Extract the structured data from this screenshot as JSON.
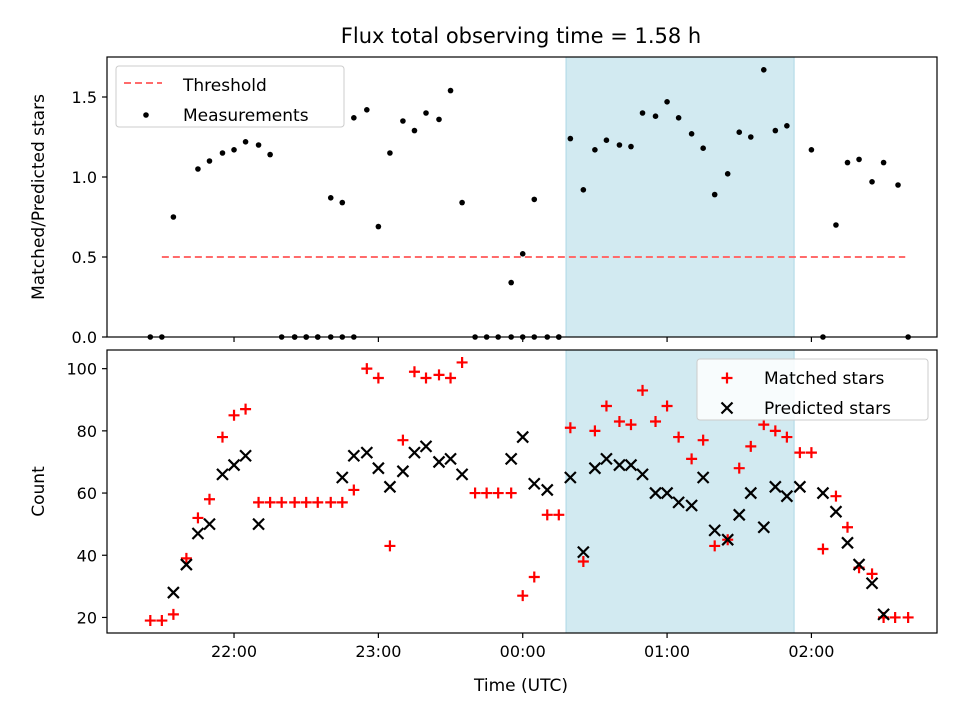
{
  "chart_data": {
    "title": "Flux total observing time = 1.58 h",
    "xlabel": "Time (UTC)",
    "x_tick_labels": [
      "22:00",
      "23:00",
      "00:00",
      "01:00",
      "02:00"
    ],
    "x_tick_hours": [
      22,
      23,
      24,
      25,
      26
    ],
    "xlim_hours": [
      21.12,
      26.87
    ],
    "shaded_span_hours": [
      24.3,
      25.88
    ],
    "colors": {
      "shade": "#add8e6",
      "threshold": "#ff6b6b",
      "measurements": "#000000",
      "matched": "#ff0000",
      "predicted": "#000000"
    },
    "panels": [
      {
        "type": "scatter",
        "ylabel": "Matched/Predicted stars",
        "ylim": [
          0,
          1.75
        ],
        "y_ticks": [
          0.0,
          0.5,
          1.0,
          1.5
        ],
        "y_tick_labels": [
          "0.0",
          "0.5",
          "1.0",
          "1.5"
        ],
        "legend_position": "top-left",
        "legend": [
          {
            "label": "Threshold",
            "marker": "dashed-line",
            "color": "#ff6b6b"
          },
          {
            "label": "Measurements",
            "marker": "dot",
            "color": "#000000"
          }
        ],
        "threshold": {
          "y": 0.5,
          "x_range_hours": [
            21.5,
            26.65
          ]
        },
        "series": [
          {
            "name": "Measurements",
            "marker": "dot",
            "x_hours": [
              21.5,
              21.58,
              21.75,
              21.83,
              21.92,
              22.0,
              22.08,
              22.17,
              22.25,
              22.33,
              22.42,
              22.5,
              22.58,
              22.67,
              22.75,
              22.83,
              22.92,
              23.0,
              23.08,
              23.17,
              23.25,
              23.33,
              23.42,
              23.5,
              23.58,
              23.67,
              23.75,
              23.83,
              23.92,
              24.0,
              24.08,
              24.17,
              24.25,
              24.33,
              24.42,
              24.5,
              24.58,
              24.67,
              24.75,
              24.83,
              24.92,
              25.0,
              25.08,
              25.17,
              25.25,
              25.33,
              25.42,
              25.5,
              25.58,
              25.67,
              25.75,
              25.83,
              26.0,
              26.08,
              26.17,
              26.25,
              26.33,
              26.42,
              26.5,
              26.6,
              26.67,
              21.42,
              22.42,
              22.5,
              22.58,
              22.67,
              22.75,
              22.83,
              23.92,
              24.0,
              24.08,
              24.25
            ],
            "y": [
              0.0,
              0.75,
              1.05,
              1.1,
              1.15,
              1.17,
              1.22,
              1.2,
              1.14,
              0.0,
              0.0,
              0.0,
              0.0,
              0.87,
              0.84,
              1.37,
              1.42,
              0.69,
              1.15,
              1.35,
              1.29,
              1.4,
              1.36,
              1.54,
              0.84,
              0.0,
              0.0,
              0.0,
              0.34,
              0.52,
              0.86,
              0.0,
              0.0,
              1.24,
              0.92,
              1.17,
              1.23,
              1.2,
              1.19,
              1.4,
              1.38,
              1.47,
              1.37,
              1.27,
              1.18,
              0.89,
              1.02,
              1.28,
              1.25,
              1.67,
              1.29,
              1.32,
              1.17,
              0.0,
              0.7,
              1.09,
              1.11,
              0.97,
              1.09,
              0.95,
              0.0,
              0.0,
              0.0,
              0.0,
              0.0,
              0.0,
              0.0,
              0.0,
              0.0,
              0.0,
              0.0,
              0.0
            ]
          }
        ]
      },
      {
        "type": "scatter",
        "ylabel": "Count",
        "ylim": [
          15,
          106
        ],
        "y_ticks": [
          20,
          40,
          60,
          80,
          100
        ],
        "y_tick_labels": [
          "20",
          "40",
          "60",
          "80",
          "100"
        ],
        "legend_position": "top-right",
        "legend": [
          {
            "label": "Matched stars",
            "marker": "plus",
            "color": "#ff0000"
          },
          {
            "label": "Predicted stars",
            "marker": "x",
            "color": "#000000"
          }
        ],
        "series": [
          {
            "name": "Matched stars",
            "marker": "plus",
            "x_hours": [
              21.42,
              21.5,
              21.58,
              21.67,
              21.75,
              21.83,
              21.92,
              22.0,
              22.08,
              22.17,
              22.25,
              22.33,
              22.42,
              22.5,
              22.58,
              22.67,
              22.75,
              22.83,
              22.92,
              23.0,
              23.08,
              23.17,
              23.25,
              23.33,
              23.42,
              23.5,
              23.58,
              23.67,
              23.75,
              23.83,
              23.92,
              24.0,
              24.08,
              24.17,
              24.25,
              24.33,
              24.42,
              24.5,
              24.58,
              24.67,
              24.75,
              24.83,
              24.92,
              25.0,
              25.08,
              25.17,
              25.25,
              25.33,
              25.42,
              25.5,
              25.58,
              25.67,
              25.75,
              25.83,
              25.92,
              26.0,
              26.08,
              26.17,
              26.25,
              26.33,
              26.42,
              26.5,
              26.58,
              26.67
            ],
            "y": [
              19,
              19,
              21,
              39,
              52,
              58,
              78,
              85,
              87,
              57,
              57,
              57,
              57,
              57,
              57,
              57,
              57,
              61,
              100,
              97,
              43,
              77,
              99,
              97,
              98,
              97,
              102,
              60,
              60,
              60,
              60,
              27,
              33,
              53,
              53,
              81,
              38,
              80,
              88,
              83,
              82,
              93,
              83,
              88,
              78,
              71,
              77,
              43,
              45,
              68,
              75,
              82,
              80,
              78,
              73,
              73,
              42,
              59,
              49,
              36,
              34,
              20,
              20,
              20
            ],
            "legend_symbol": "plus"
          },
          {
            "name": "Predicted stars",
            "marker": "x",
            "x_hours": [
              21.58,
              21.67,
              21.75,
              21.83,
              21.92,
              22.0,
              22.08,
              22.17,
              22.75,
              22.83,
              22.92,
              23.0,
              23.08,
              23.17,
              23.25,
              23.33,
              23.42,
              23.5,
              23.58,
              23.92,
              24.0,
              24.08,
              24.17,
              24.33,
              24.42,
              24.5,
              24.58,
              24.67,
              24.75,
              24.83,
              24.92,
              25.0,
              25.08,
              25.17,
              25.25,
              25.33,
              25.42,
              25.5,
              25.58,
              25.67,
              25.75,
              25.83,
              25.92,
              26.08,
              26.17,
              26.25,
              26.33,
              26.42,
              26.5
            ],
            "y": [
              28,
              37,
              47,
              50,
              66,
              69,
              72,
              50,
              65,
              72,
              73,
              68,
              62,
              67,
              73,
              75,
              70,
              71,
              66,
              71,
              78,
              63,
              61,
              65,
              41,
              68,
              71,
              69,
              69,
              66,
              60,
              60,
              57,
              56,
              65,
              48,
              45,
              53,
              60,
              49,
              62,
              59,
              62,
              60,
              54,
              44,
              37,
              31,
              21
            ]
          }
        ]
      }
    ]
  }
}
